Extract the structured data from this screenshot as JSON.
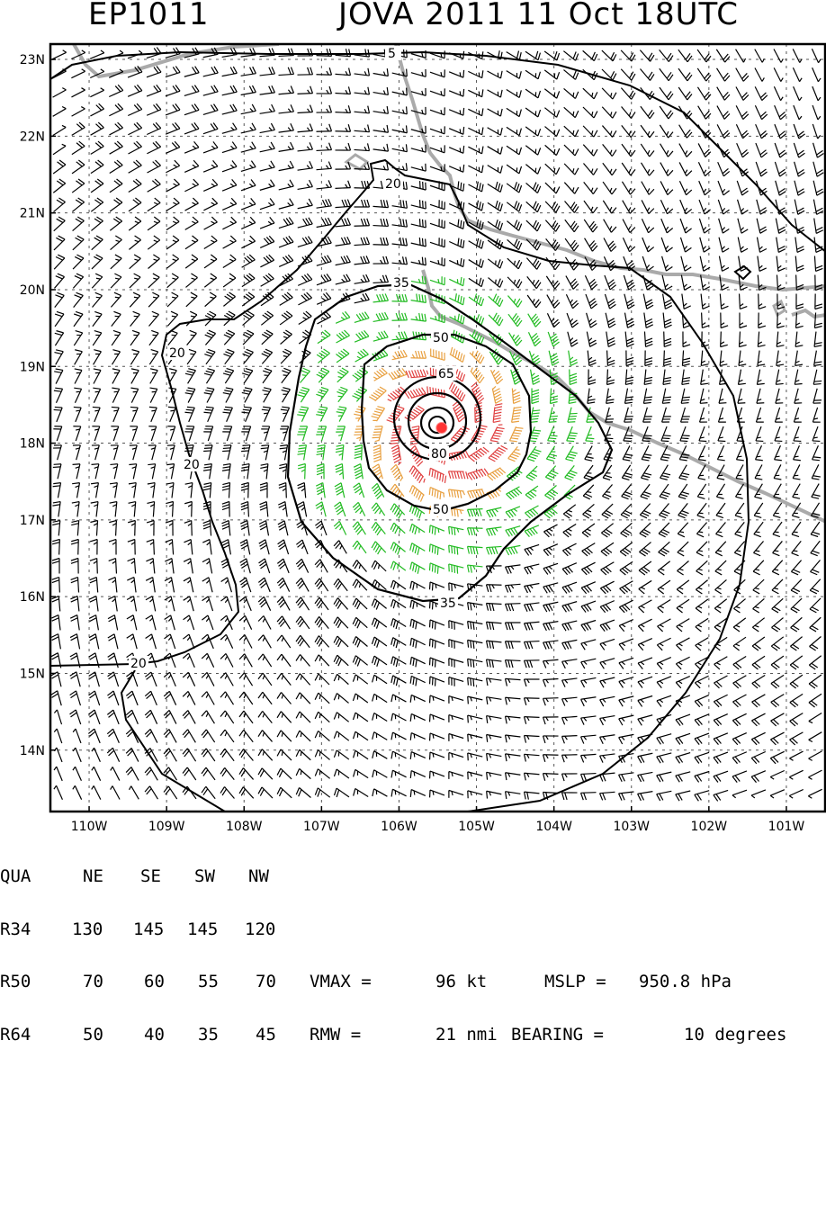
{
  "header": {
    "storm_id": "EP1011",
    "title": "JOVA 2011 11 Oct 18UTC"
  },
  "map": {
    "lon_min": -110.5,
    "lon_max": -100.5,
    "lat_min": 13.2,
    "lat_max": 23.2,
    "lon_ticks": [
      "110W",
      "109W",
      "108W",
      "107W",
      "106W",
      "105W",
      "104W",
      "103W",
      "102W",
      "101W"
    ],
    "lat_ticks": [
      "14N",
      "15N",
      "16N",
      "17N",
      "18N",
      "19N",
      "20N",
      "21N",
      "22N",
      "23N"
    ],
    "center": {
      "lon": -105.45,
      "lat": 18.2
    },
    "contour_labels": [
      "5",
      "20",
      "20",
      "20",
      "20",
      "35",
      "35",
      "50",
      "50",
      "65",
      "80"
    ],
    "colors": {
      "barb_default": "#000000",
      "barb_34kt": "#22bb22",
      "barb_50kt": "#e8a040",
      "barb_64kt": "#e04040",
      "coastline": "#aaaaaa",
      "center_marker": "#ff3333"
    }
  },
  "table": {
    "header": [
      "QUA",
      "NE",
      "SE",
      "SW",
      "NW"
    ],
    "rows": [
      {
        "label": "R34",
        "values": [
          "130",
          "145",
          "145",
          "120"
        ]
      },
      {
        "label": "R50",
        "values": [
          "70",
          "60",
          "55",
          "70"
        ]
      },
      {
        "label": "R64",
        "values": [
          "50",
          "40",
          "35",
          "45"
        ]
      }
    ],
    "vmax_label": "VMAX =",
    "vmax_value": "96 kt",
    "mslp_label": "MSLP =",
    "mslp_value": "950.8 hPa",
    "rmw_label": "RMW =",
    "rmw_value": "21 nmi",
    "bearing_label": "BEARING =",
    "bearing_value": "10 degrees"
  }
}
